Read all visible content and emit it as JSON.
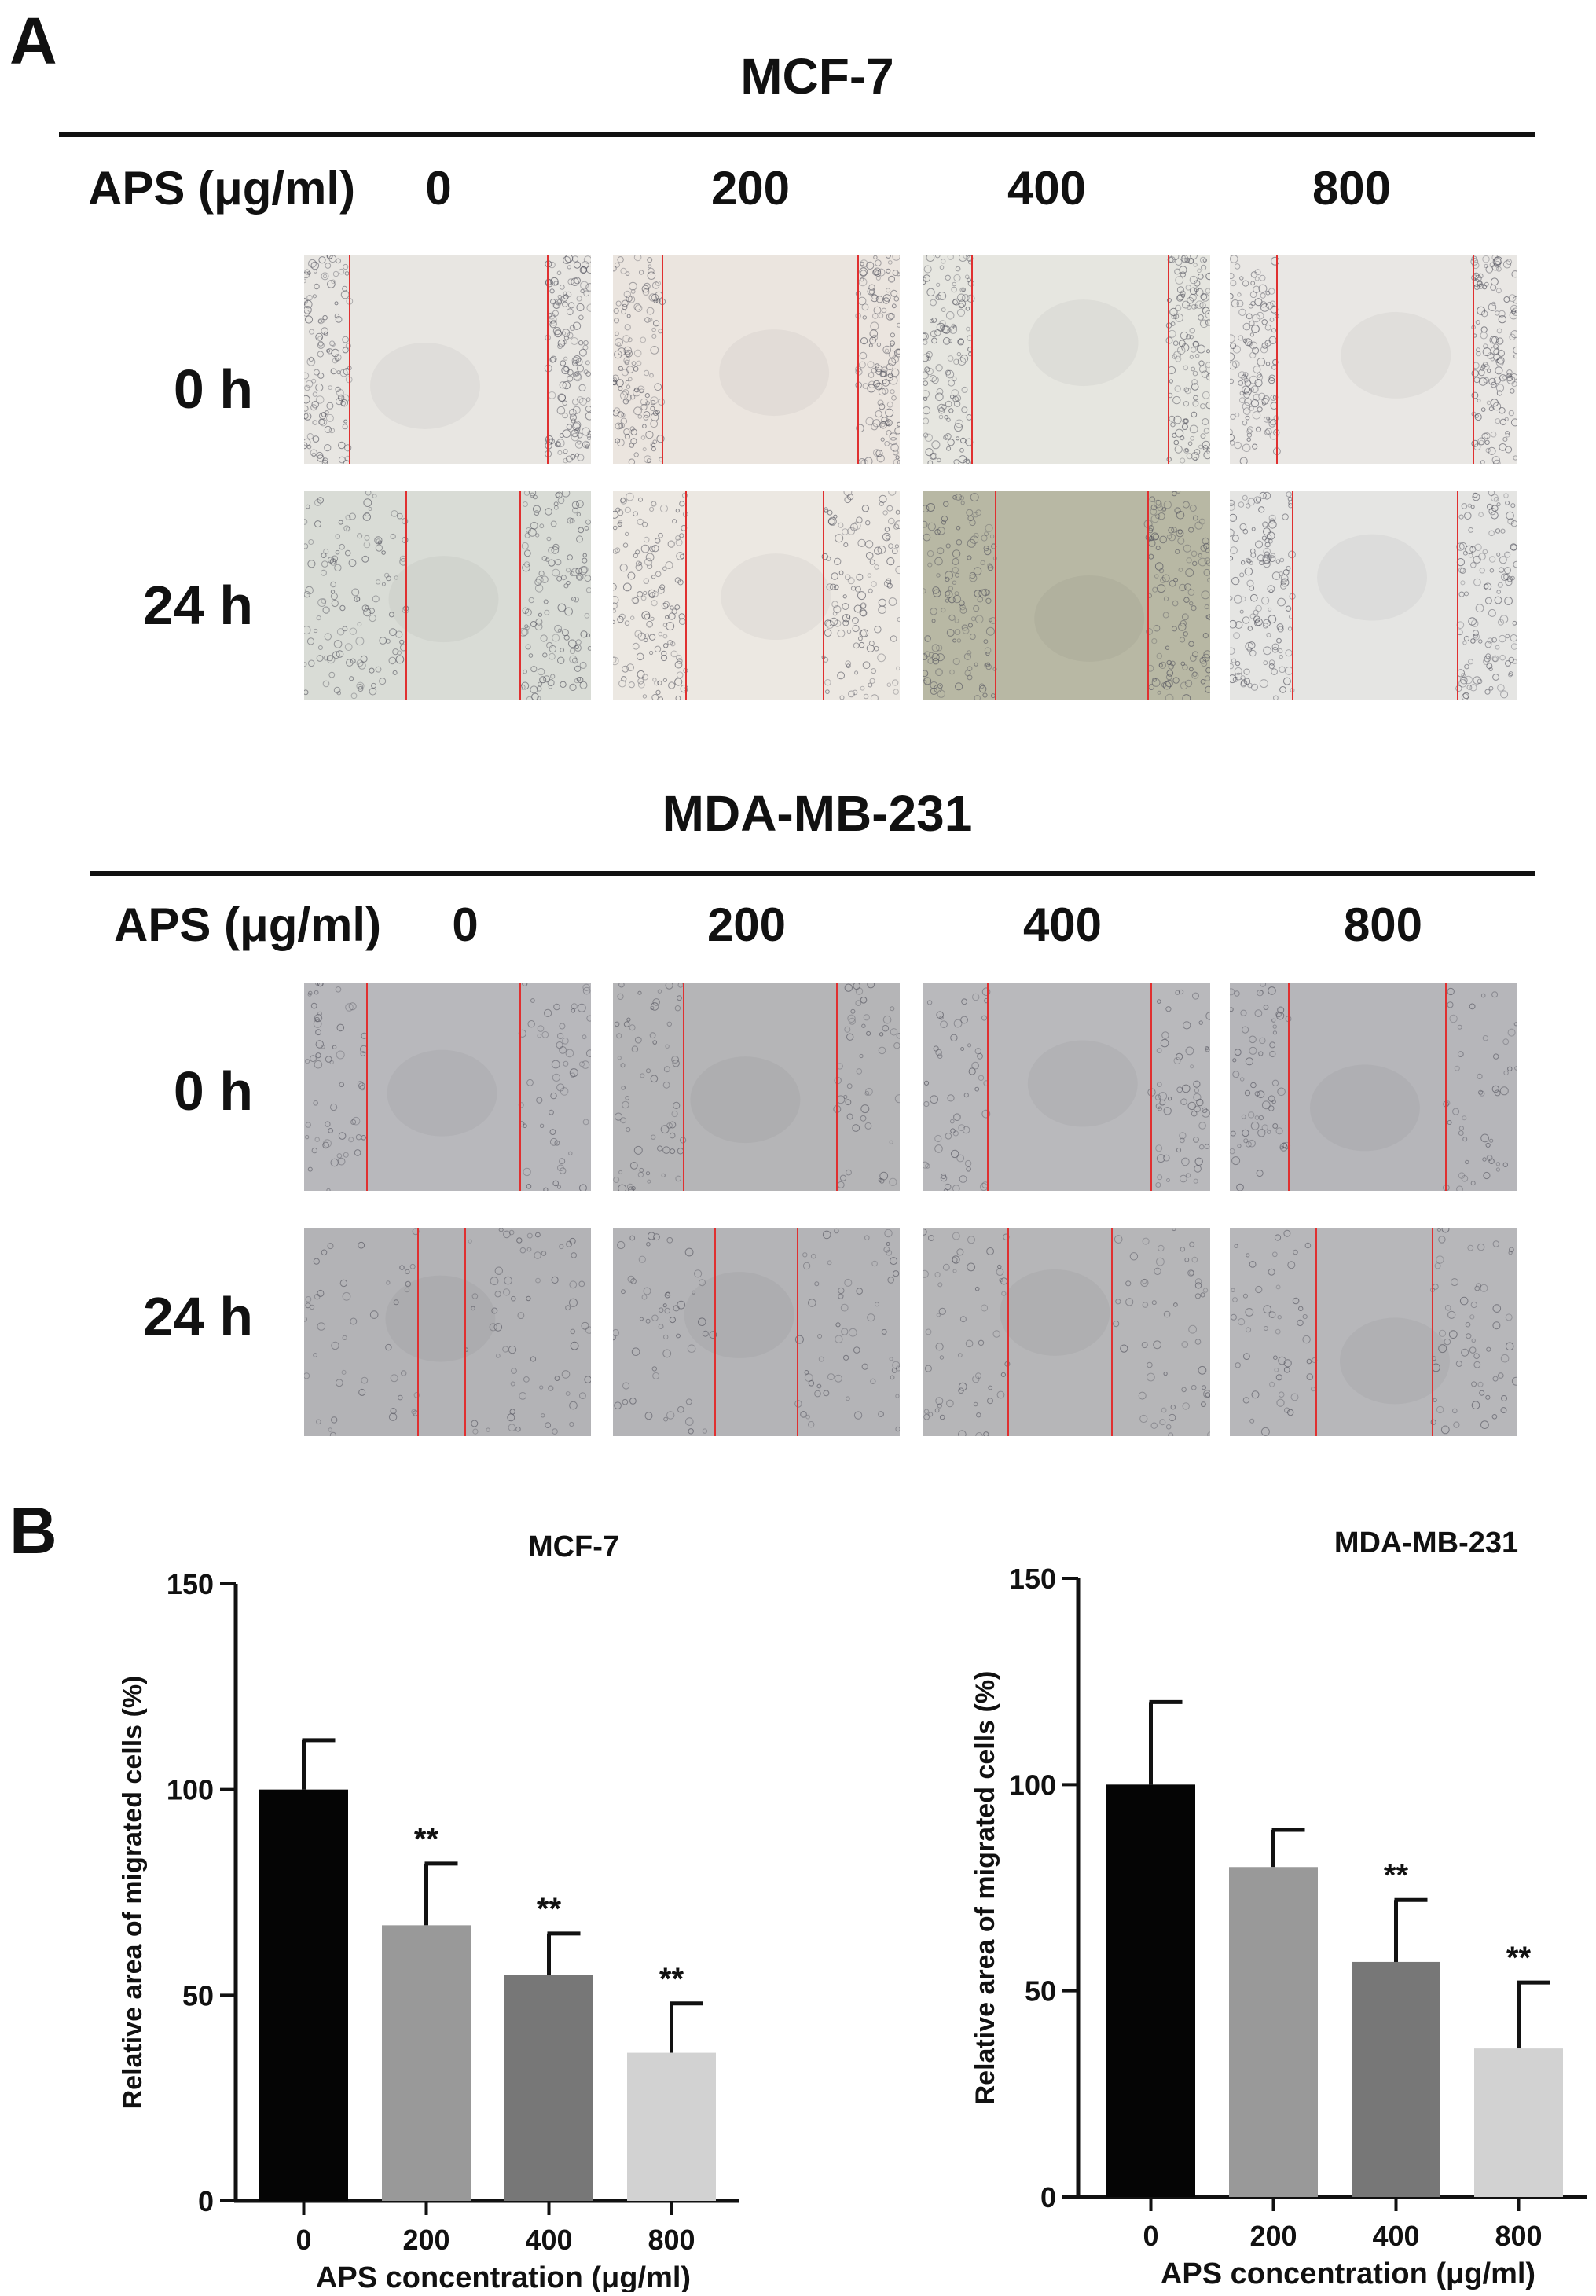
{
  "panel_a": {
    "letter": "A",
    "cell_lines": [
      {
        "title": "MCF-7",
        "dose_label": "APS (μg/ml)",
        "doses": [
          "0",
          "200",
          "400",
          "800"
        ],
        "times": [
          "0 h",
          "24 h"
        ]
      },
      {
        "title": "MDA-MB-231",
        "dose_label": "APS (μg/ml)",
        "doses": [
          "0",
          "200",
          "400",
          "800"
        ],
        "times": [
          "0 h",
          "24 h"
        ]
      }
    ],
    "image_colors": {
      "mcf7_0h": [
        "#e8e6e2",
        "#ebe5df",
        "#e6e6e0",
        "#e9e7e4"
      ],
      "mcf7_24h": [
        "#d9dcd6",
        "#ece8e2",
        "#b8b8a4",
        "#e5e5e3"
      ],
      "mda_0h": [
        "#b8b8bc",
        "#b5b5b7",
        "#b9b9bc",
        "#b6b6ba"
      ],
      "mda_24h": [
        "#b3b3b6",
        "#b4b4b7",
        "#b6b6b8",
        "#b7b7ba"
      ],
      "wound_line": "#e03030"
    }
  },
  "panel_b": {
    "letter": "B",
    "chart_data": [
      {
        "type": "bar",
        "title": "MCF-7",
        "xlabel": "APS concentration (μg/ml)",
        "ylabel": "Relative area of migrated cells (%)",
        "categories": [
          "0",
          "200",
          "400",
          "800"
        ],
        "values": [
          100,
          67,
          55,
          36
        ],
        "error": [
          12,
          15,
          10,
          12
        ],
        "significance": [
          "",
          "**",
          "**",
          "**"
        ],
        "ylim": [
          0,
          150
        ],
        "yticks": [
          0,
          50,
          100,
          150
        ],
        "bar_colors": [
          "#050505",
          "#999999",
          "#777777",
          "#d2d2d2"
        ]
      },
      {
        "type": "bar",
        "title": "MDA-MB-231",
        "xlabel": "APS concentration (μg/ml)",
        "ylabel": "Relative area of migrated cells (%)",
        "categories": [
          "0",
          "200",
          "400",
          "800"
        ],
        "values": [
          100,
          80,
          57,
          36
        ],
        "error": [
          20,
          9,
          15,
          16
        ],
        "significance": [
          "",
          "",
          "**",
          "**"
        ],
        "ylim": [
          0,
          150
        ],
        "yticks": [
          0,
          50,
          100,
          150
        ],
        "bar_colors": [
          "#050505",
          "#999999",
          "#777777",
          "#d2d2d2"
        ]
      }
    ]
  }
}
